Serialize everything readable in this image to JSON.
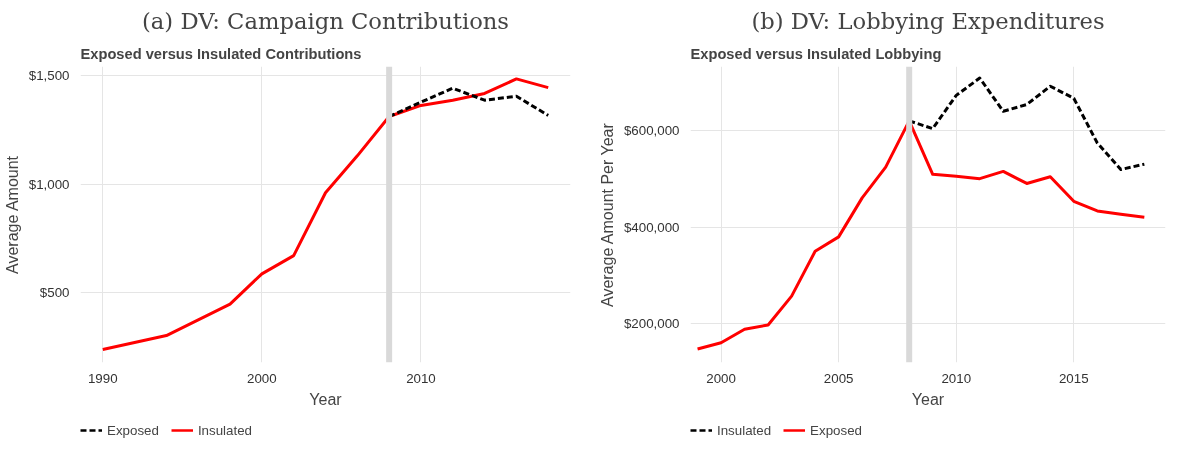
{
  "chart_data": [
    {
      "type": "line",
      "title": "(a) DV: Campaign Contributions",
      "subtitle": "Exposed versus Insulated Contributions",
      "xlabel": "Year",
      "ylabel": "Average Amount",
      "x": [
        1990,
        1992,
        1994,
        1996,
        1998,
        2000,
        2002,
        2004,
        2006,
        2008,
        2010,
        2012,
        2014,
        2016,
        2018
      ],
      "series": [
        {
          "name": "Exposed",
          "color": "#000000",
          "line_style": "dashed",
          "values": [
            null,
            null,
            null,
            null,
            null,
            null,
            null,
            null,
            null,
            1312,
            1378,
            1442,
            1387,
            1405,
            1317
          ]
        },
        {
          "name": "Insulated",
          "color": "#ff0000",
          "line_style": "solid",
          "values": [
            240,
            272,
            304,
            376,
            449,
            588,
            672,
            961,
            1131,
            1312,
            1363,
            1387,
            1418,
            1485,
            1445
          ]
        }
      ],
      "xlim": [
        1988.6,
        2019.4
      ],
      "ylim": [
        180,
        1542
      ],
      "xticks": [
        1990,
        2000,
        2010
      ],
      "yticks": [
        {
          "value": 500,
          "label": "$500"
        },
        {
          "value": 1000,
          "label": "$1,000"
        },
        {
          "value": 1500,
          "label": "$1,500"
        }
      ],
      "ref_lines": [
        {
          "axis": "x",
          "value": 2008,
          "color": "#d9d9d9"
        }
      ],
      "grid": true,
      "legend": "bottom"
    },
    {
      "type": "line",
      "title": "(b) DV: Lobbying Expenditures",
      "subtitle": "Exposed versus Insulated Lobbying",
      "xlabel": "Year",
      "ylabel": "Average Amount Per Year",
      "x": [
        1999,
        2000,
        2001,
        2002,
        2003,
        2004,
        2005,
        2006,
        2007,
        2008,
        2009,
        2010,
        2011,
        2012,
        2013,
        2014,
        2015,
        2016,
        2017,
        2018
      ],
      "series": [
        {
          "name": "Insulated",
          "color": "#000000",
          "line_style": "dashed",
          "values": [
            null,
            null,
            null,
            null,
            null,
            null,
            null,
            null,
            null,
            621000,
            605000,
            674000,
            710000,
            641000,
            655000,
            693000,
            668000,
            575000,
            520000,
            531000
          ]
        },
        {
          "name": "Exposed",
          "color": "#ff0000",
          "line_style": "solid",
          "values": [
            147000,
            160000,
            188000,
            197000,
            257000,
            350000,
            380000,
            461000,
            525000,
            621000,
            510000,
            506000,
            501000,
            516000,
            491000,
            505000,
            454000,
            434000,
            427000,
            421000
          ]
        }
      ],
      "xlim": [
        1998.7,
        2018.9
      ],
      "ylim": [
        119000,
        734000
      ],
      "xticks": [
        2000,
        2005,
        2010,
        2015
      ],
      "yticks": [
        {
          "value": 200000,
          "label": "$200,000"
        },
        {
          "value": 400000,
          "label": "$400,000"
        },
        {
          "value": 600000,
          "label": "$600,000"
        }
      ],
      "ref_lines": [
        {
          "axis": "x",
          "value": 2008,
          "color": "#d9d9d9"
        }
      ],
      "grid": true,
      "legend": "bottom"
    }
  ]
}
